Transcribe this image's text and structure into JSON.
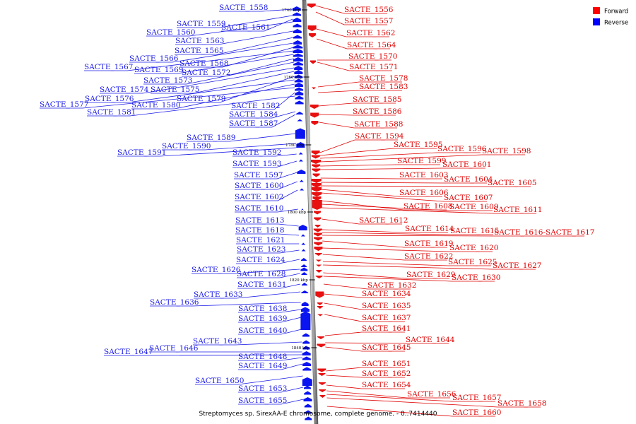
{
  "legend": {
    "forward_label": "Forward",
    "reverse_label": "Reverse",
    "forward_color": "#ff0000",
    "reverse_color": "#0000ff"
  },
  "caption": "Streptomyces sp. SirexAA-E chromosome, complete genome. - 0..7414440",
  "ruler_ticks": [
    "1740 kbp",
    "1760 kbp",
    "1780 kbp",
    "1800 kbp",
    "1820 kbp",
    "1840 kbp"
  ],
  "reverse_genes": [
    "SACTE_1558",
    "SACTE_1559",
    "SACTE_1560",
    "SACTE_1561",
    "SACTE_1563",
    "SACTE_1565",
    "SACTE_1566",
    "SACTE_1568",
    "SACTE_1567",
    "SACTE_1569",
    "SACTE_1572",
    "SACTE_1573",
    "SACTE_1574",
    "SACTE_1575",
    "SACTE_1579",
    "SACTE_1576",
    "SACTE_1580",
    "SACTE_1577",
    "SACTE_1582",
    "SACTE_1581",
    "SACTE_1584",
    "SACTE_1587",
    "SACTE_1589",
    "SACTE_1590",
    "SACTE_1591",
    "SACTE_1592",
    "SACTE_1593",
    "SACTE_1597",
    "SACTE_1600",
    "SACTE_1602",
    "SACTE_1610",
    "SACTE_1613",
    "SACTE_1618",
    "SACTE_1621",
    "SACTE_1623",
    "SACTE_1624",
    "SACTE_1626",
    "SACTE_1628",
    "SACTE_1631",
    "SACTE_1633",
    "SACTE_1636",
    "SACTE_1638",
    "SACTE_1639",
    "SACTE_1640",
    "SACTE_1643",
    "SACTE_1646",
    "SACTE_1647",
    "SACTE_1648",
    "SACTE_1649",
    "SACTE_1650",
    "SACTE_1653",
    "SACTE_1655"
  ],
  "forward_genes": [
    "SACTE_1556",
    "SACTE_1557",
    "SACTE_1562",
    "SACTE_1564",
    "SACTE_1570",
    "SACTE_1571",
    "SACTE_1578",
    "SACTE_1583",
    "SACTE_1585",
    "SACTE_1586",
    "SACTE_1588",
    "SACTE_1594",
    "SACTE_1595",
    "SACTE_1596",
    "SACTE_1598",
    "SACTE_1599",
    "SACTE_1601",
    "SACTE_1603",
    "SACTE_1604",
    "SACTE_1605",
    "SACTE_1606",
    "SACTE_1607",
    "SACTE_1608",
    "SACTE_1609",
    "SACTE_1611",
    "SACTE_1612",
    "SACTE_1614",
    "SACTE_1615",
    "SACTE_1616-SACTE_1617",
    "SACTE_1619",
    "SACTE_1620",
    "SACTE_1622",
    "SACTE_1625",
    "SACTE_1627",
    "SACTE_1629",
    "SACTE_1630",
    "SACTE_1632",
    "SACTE_1634",
    "SACTE_1635",
    "SACTE_1637",
    "SACTE_1641",
    "SACTE_1644",
    "SACTE_1645",
    "SACTE_1651",
    "SACTE_1652",
    "SACTE_1654",
    "SACTE_1656",
    "SACTE_1657",
    "SACTE_1658",
    "SACTE_1660"
  ]
}
